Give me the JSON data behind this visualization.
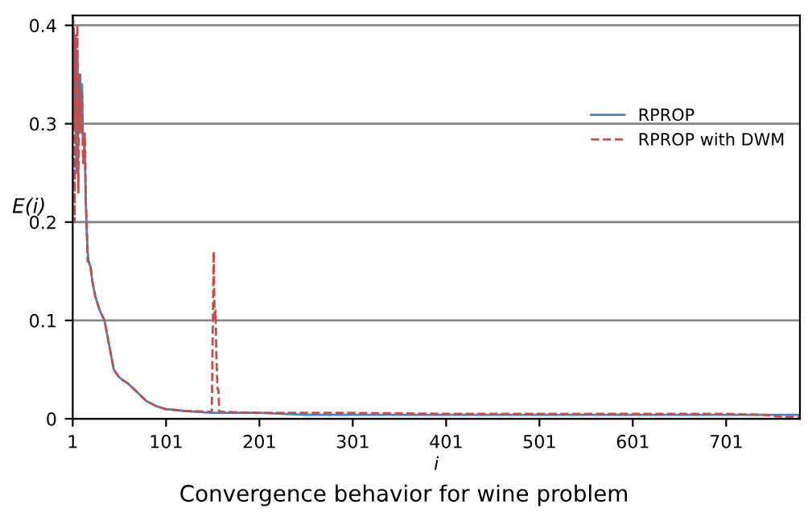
{
  "chart_data": {
    "type": "line",
    "title": "Convergence behavior for wine problem",
    "xlabel": "i",
    "ylabel": "E(i)",
    "xlim": [
      1,
      780
    ],
    "xticks": [
      1,
      101,
      201,
      301,
      401,
      501,
      601,
      701
    ],
    "ylim": [
      0,
      0.41
    ],
    "yticks": [
      0,
      0.1,
      0.2,
      0.3,
      0.4
    ],
    "grid": "y",
    "legend": "right",
    "series": [
      {
        "name": "RPROP",
        "color": "#4f81bd",
        "line_style": "solid",
        "x": [
          1,
          2,
          3,
          4,
          5,
          6,
          7,
          8,
          9,
          10,
          11,
          12,
          13,
          14,
          15,
          16,
          17,
          18,
          20,
          22,
          25,
          30,
          35,
          40,
          45,
          50,
          55,
          60,
          70,
          80,
          90,
          100,
          120,
          150,
          200,
          250,
          300,
          400,
          500,
          600,
          700,
          780
        ],
        "values": [
          0.4,
          0.38,
          0.3,
          0.36,
          0.25,
          0.37,
          0.29,
          0.33,
          0.35,
          0.3,
          0.34,
          0.28,
          0.29,
          0.27,
          0.22,
          0.19,
          0.17,
          0.16,
          0.155,
          0.14,
          0.125,
          0.11,
          0.1,
          0.075,
          0.05,
          0.043,
          0.039,
          0.036,
          0.027,
          0.018,
          0.013,
          0.01,
          0.008,
          0.006,
          0.006,
          0.004,
          0.004,
          0.004,
          0.004,
          0.004,
          0.004,
          0.004
        ]
      },
      {
        "name": "RPROP with DWM",
        "color": "#c0504d",
        "line_style": "dashed",
        "x": [
          1,
          2,
          3,
          4,
          5,
          6,
          7,
          8,
          9,
          10,
          11,
          12,
          13,
          14,
          15,
          16,
          17,
          18,
          20,
          22,
          25,
          30,
          35,
          40,
          45,
          50,
          55,
          60,
          70,
          80,
          90,
          100,
          120,
          150,
          152,
          153,
          154,
          155,
          156,
          157,
          158,
          160,
          200,
          250,
          300,
          400,
          500,
          600,
          700,
          740,
          760,
          780
        ],
        "values": [
          0.41,
          0.4,
          0.2,
          0.39,
          0.3,
          0.4,
          0.23,
          0.35,
          0.3,
          0.29,
          0.33,
          0.26,
          0.27,
          0.29,
          0.22,
          0.2,
          0.16,
          0.16,
          0.155,
          0.14,
          0.125,
          0.11,
          0.1,
          0.075,
          0.05,
          0.043,
          0.039,
          0.036,
          0.027,
          0.018,
          0.013,
          0.01,
          0.008,
          0.007,
          0.17,
          0.1,
          0.11,
          0.06,
          0.03,
          0.03,
          0.007,
          0.007,
          0.006,
          0.006,
          0.006,
          0.005,
          0.005,
          0.005,
          0.005,
          0.004,
          0.002,
          0.002
        ]
      }
    ]
  }
}
